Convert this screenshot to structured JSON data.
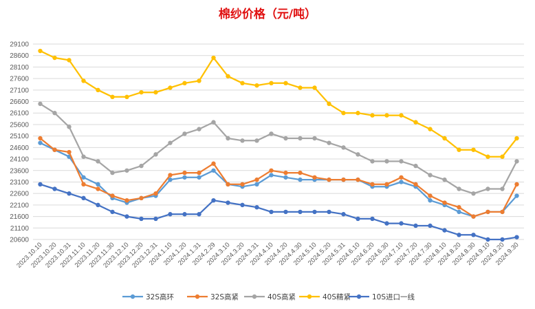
{
  "chart_data": {
    "type": "line",
    "title": "棉纱价格（元/吨）",
    "xlabel": "",
    "ylabel": "",
    "ylim": [
      20600,
      29100
    ],
    "y_ticks": [
      20600,
      21100,
      21600,
      22100,
      22600,
      23100,
      23600,
      24100,
      24600,
      25100,
      25600,
      26100,
      26600,
      27100,
      27600,
      28100,
      28600,
      29100
    ],
    "grid": true,
    "legend_position": "bottom",
    "categories": [
      "2023.10.10",
      "2023.10.20",
      "2023.10.31",
      "2023.11.10",
      "2023.11.20",
      "2023.11.30",
      "2023.12.10",
      "2023.12.20",
      "2023.12.31",
      "2024.1.10",
      "2024.1.20",
      "2024.1.31",
      "2024.2.29",
      "2024.3.10",
      "2024.3.20",
      "2024.3.31",
      "2024.4.10",
      "2024.4.20",
      "2024.4.30",
      "2024.5.10",
      "2024.5.20",
      "2024.5.31",
      "2024.6.10",
      "2024.6.20",
      "2024.6.30",
      "2024.7.10",
      "2024.7.20",
      "2024.7.30",
      "2024.8.10",
      "2024.8.20",
      "2024.8.30",
      "2024.9.10",
      "2024.9.20",
      "2024.9.30"
    ],
    "series": [
      {
        "name": "32S高环",
        "color": "#5b9bd5",
        "values": [
          24800,
          24500,
          24200,
          23300,
          23000,
          22400,
          22200,
          22400,
          22500,
          23200,
          23300,
          23300,
          23600,
          23000,
          22900,
          23000,
          23400,
          23300,
          23200,
          23200,
          23200,
          23200,
          23200,
          22900,
          22900,
          23100,
          22900,
          22300,
          22100,
          21800,
          21600,
          21800,
          21800,
          22500
        ]
      },
      {
        "name": "32S高紧",
        "color": "#ed7d31",
        "values": [
          25000,
          24500,
          24400,
          23000,
          22800,
          22500,
          22300,
          22400,
          22600,
          23400,
          23500,
          23500,
          23900,
          23000,
          23000,
          23200,
          23600,
          23500,
          23500,
          23300,
          23200,
          23200,
          23200,
          23000,
          23000,
          23300,
          23000,
          22500,
          22200,
          22000,
          21600,
          21800,
          21800,
          23000
        ]
      },
      {
        "name": "40S高紧",
        "color": "#a5a5a5",
        "values": [
          26500,
          26100,
          25500,
          24200,
          24000,
          23500,
          23600,
          23800,
          24300,
          24800,
          25200,
          25400,
          25700,
          25000,
          24900,
          24900,
          25200,
          25000,
          25000,
          25000,
          24800,
          24600,
          24300,
          24000,
          24000,
          24000,
          23800,
          23400,
          23200,
          22800,
          22600,
          22800,
          22800,
          24000
        ]
      },
      {
        "name": "40S精紧",
        "color": "#ffc000",
        "values": [
          28800,
          28500,
          28400,
          27500,
          27100,
          26800,
          26800,
          27000,
          27000,
          27200,
          27400,
          27500,
          28500,
          27700,
          27400,
          27300,
          27400,
          27400,
          27200,
          27200,
          26500,
          26100,
          26100,
          26000,
          26000,
          26000,
          25700,
          25400,
          25000,
          24500,
          24500,
          24200,
          24200,
          25000
        ]
      },
      {
        "name": "10S进口一线",
        "color": "#4472c4",
        "values": [
          23000,
          22800,
          22600,
          22400,
          22100,
          21800,
          21600,
          21500,
          21500,
          21700,
          21700,
          21700,
          22300,
          22200,
          22100,
          22000,
          21800,
          21800,
          21800,
          21800,
          21800,
          21700,
          21500,
          21500,
          21300,
          21300,
          21200,
          21200,
          21000,
          20800,
          20800,
          20600,
          20600,
          20700
        ]
      }
    ]
  }
}
